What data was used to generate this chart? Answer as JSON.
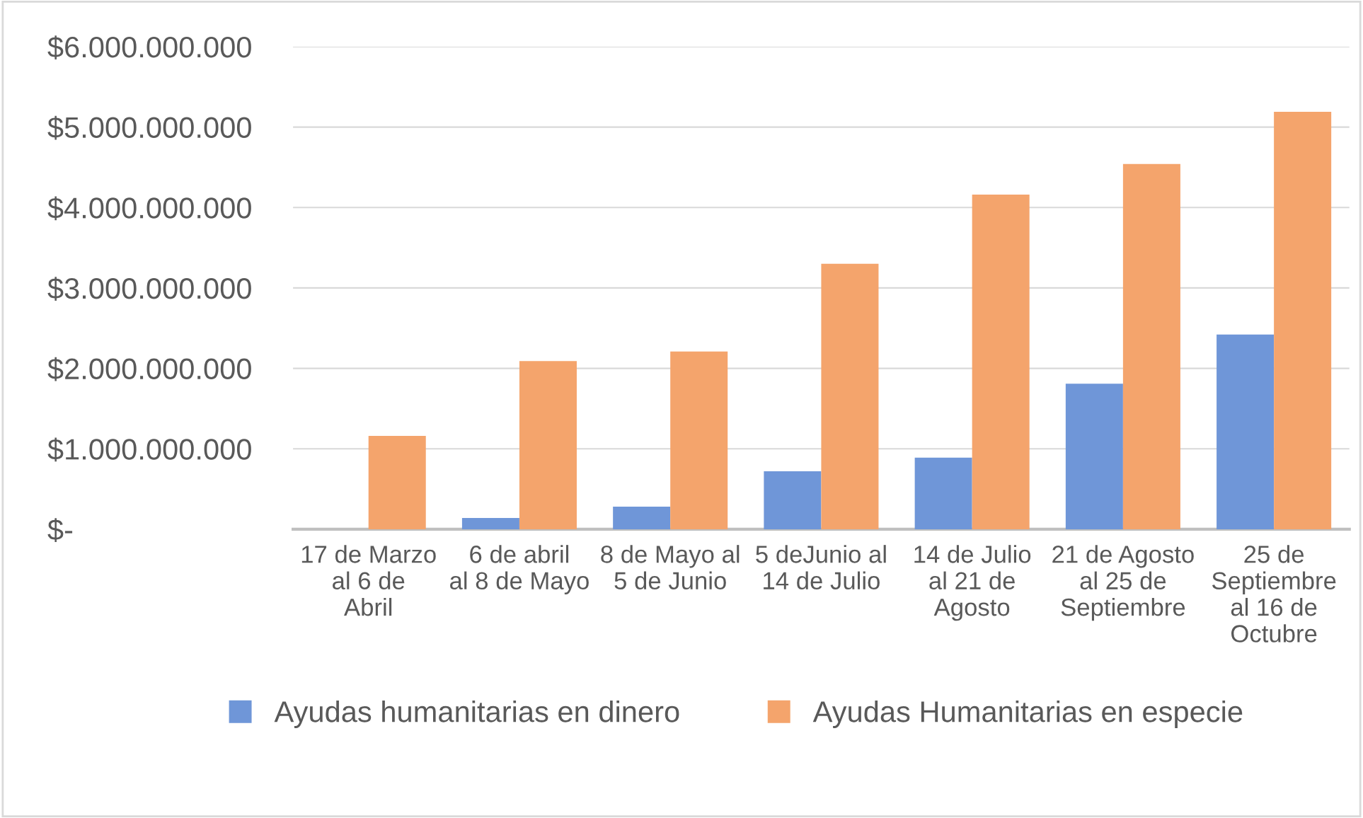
{
  "chart_data": {
    "type": "bar",
    "categories": [
      "17 de Marzo al 6 de Abril",
      "6 de abril al 8 de Mayo",
      "8 de Mayo al  5 de Junio",
      "5 deJunio al 14 de Julio",
      "14 de Julio al 21 de Agosto",
      "21 de Agosto al 25 de Septiembre",
      "25 de Septiembre al 16 de Octubre"
    ],
    "series": [
      {
        "name": "Ayudas humanitarias en dinero",
        "color": "#6f96d8",
        "values": [
          0,
          140000000.0,
          280000000.0,
          720000000.0,
          890000000.0,
          1810000000.0,
          2420000000.0
        ]
      },
      {
        "name": "Ayudas Humanitarias en especie",
        "color": "#f4a46c",
        "values": [
          1160000000.0,
          2090000000.0,
          2210000000.0,
          3300000000.0,
          4160000000.0,
          4540000000.0,
          5190000000.0
        ]
      }
    ],
    "ylim": [
      0,
      6000000000
    ],
    "yticks": [
      {
        "value": 0,
        "label": "$-"
      },
      {
        "value": 1000000000,
        "label": "$1.000.000.000"
      },
      {
        "value": 2000000000,
        "label": "$2.000.000.000"
      },
      {
        "value": 3000000000,
        "label": "$3.000.000.000"
      },
      {
        "value": 4000000000,
        "label": "$4.000.000.000"
      },
      {
        "value": 5000000000,
        "label": "$5.000.000.000"
      },
      {
        "value": 6000000000,
        "label": "$6.000.000.000"
      }
    ],
    "grid": "y",
    "legend": "bottom"
  }
}
